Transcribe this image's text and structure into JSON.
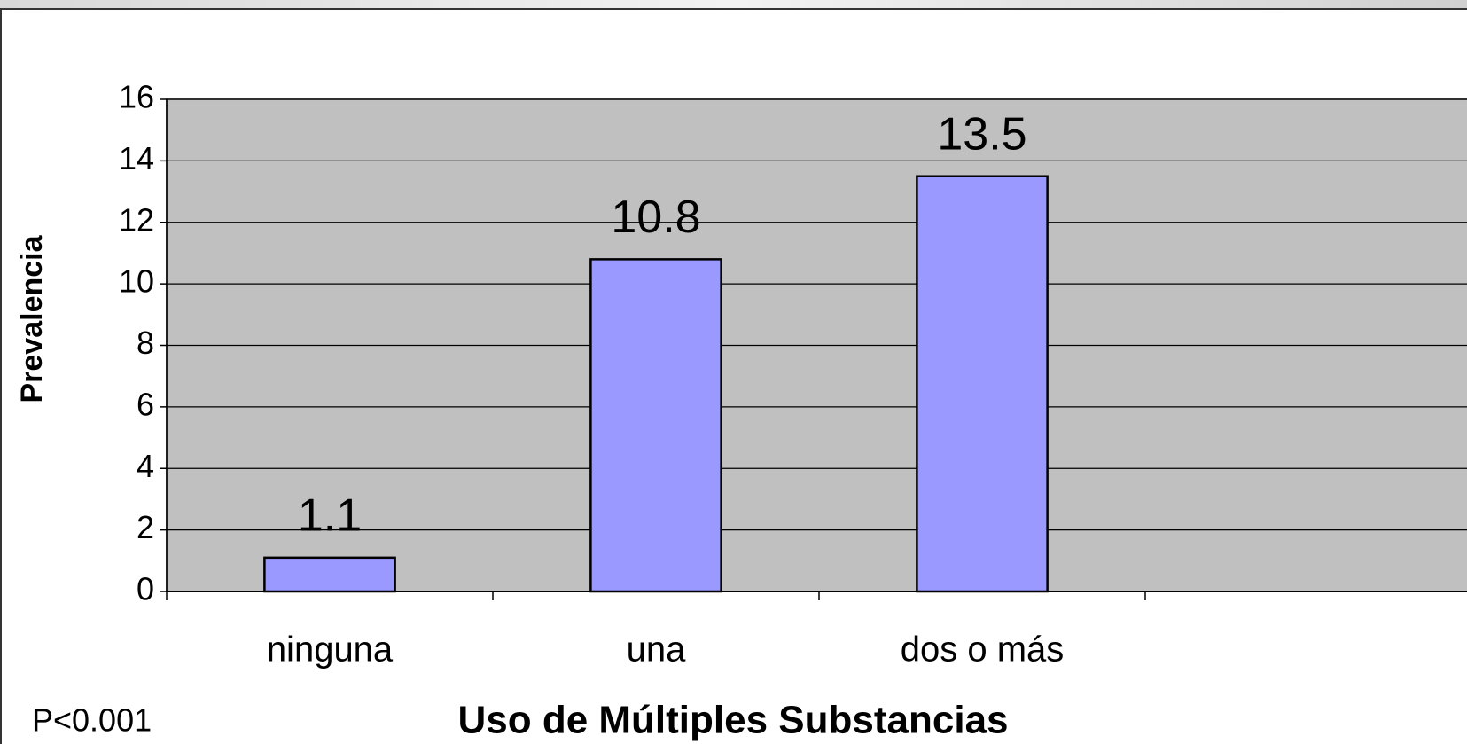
{
  "chart_data": {
    "type": "bar",
    "categories": [
      "ninguna",
      "una",
      "dos o más",
      null
    ],
    "values": [
      1.1,
      10.8,
      13.5,
      null
    ],
    "color": "#9999ff",
    "plot_background": "#c0c0c0",
    "ylim": [
      0,
      16
    ],
    "yticks": [
      0,
      2,
      4,
      6,
      8,
      10,
      12,
      14,
      16
    ],
    "grid": true,
    "y_label": "Prevalencia",
    "x_label": "Uso de Múltiples Substancias",
    "annotation": "P<0.001"
  }
}
